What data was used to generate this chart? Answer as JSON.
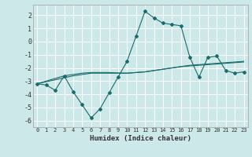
{
  "xlabel": "Humidex (Indice chaleur)",
  "ylabel": "",
  "background_color": "#cde8e8",
  "grid_color": "#b8d8d8",
  "line_color": "#1a6b6b",
  "x_values": [
    0,
    1,
    2,
    3,
    4,
    5,
    6,
    7,
    8,
    9,
    10,
    11,
    12,
    13,
    14,
    15,
    16,
    17,
    18,
    19,
    20,
    21,
    22,
    23
  ],
  "y_main": [
    -3.2,
    -3.3,
    -3.7,
    -2.6,
    -3.8,
    -4.8,
    -5.8,
    -5.1,
    -3.9,
    -2.7,
    -1.5,
    0.4,
    2.3,
    1.8,
    1.4,
    1.3,
    1.2,
    -1.2,
    -2.7,
    -1.2,
    -1.1,
    -2.2,
    -2.4,
    -2.3
  ],
  "y_line1": [
    -3.2,
    -3.05,
    -2.9,
    -2.75,
    -2.6,
    -2.5,
    -2.4,
    -2.4,
    -2.4,
    -2.4,
    -2.4,
    -2.35,
    -2.3,
    -2.2,
    -2.1,
    -2.0,
    -1.9,
    -1.85,
    -1.8,
    -1.75,
    -1.7,
    -1.65,
    -1.6,
    -1.55
  ],
  "y_line2": [
    -3.2,
    -3.0,
    -2.8,
    -2.6,
    -2.5,
    -2.4,
    -2.35,
    -2.35,
    -2.35,
    -2.38,
    -2.4,
    -2.35,
    -2.3,
    -2.2,
    -2.1,
    -2.0,
    -1.9,
    -1.8,
    -1.75,
    -1.7,
    -1.65,
    -1.6,
    -1.55,
    -1.5
  ],
  "xlim": [
    -0.5,
    23.5
  ],
  "ylim": [
    -6.5,
    2.8
  ],
  "yticks": [
    -6,
    -5,
    -4,
    -3,
    -2,
    -1,
    0,
    1,
    2
  ],
  "xticks": [
    0,
    1,
    2,
    3,
    4,
    5,
    6,
    7,
    8,
    9,
    10,
    11,
    12,
    13,
    14,
    15,
    16,
    17,
    18,
    19,
    20,
    21,
    22,
    23
  ]
}
